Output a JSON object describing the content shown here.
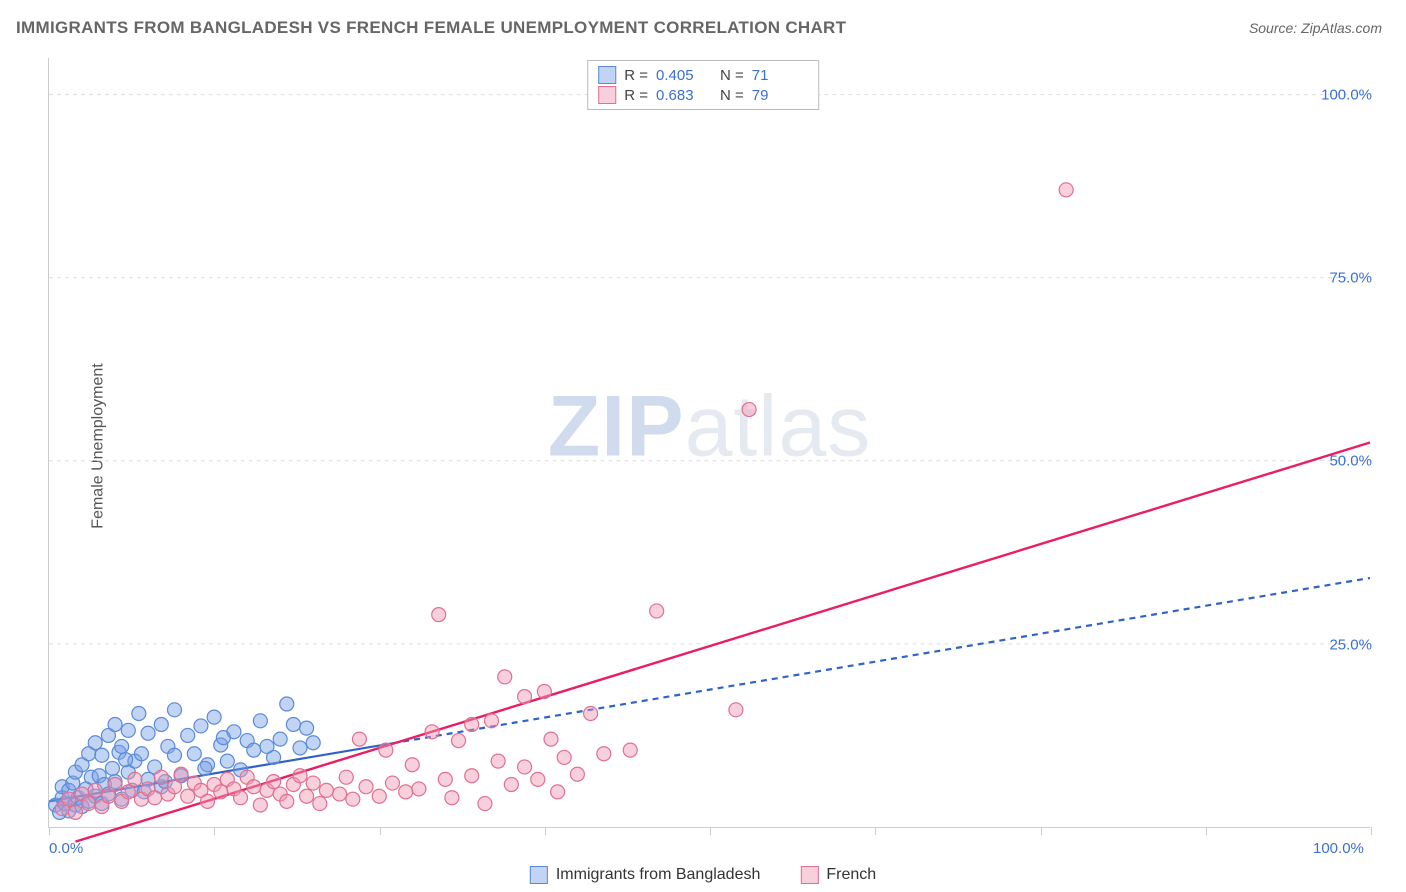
{
  "title": "IMMIGRANTS FROM BANGLADESH VS FRENCH FEMALE UNEMPLOYMENT CORRELATION CHART",
  "source": "Source: ZipAtlas.com",
  "y_axis_title": "Female Unemployment",
  "watermark_bold": "ZIP",
  "watermark_light": "atlas",
  "chart": {
    "type": "scatter-with-regression",
    "xlim": [
      0,
      100
    ],
    "ylim": [
      0,
      105
    ],
    "x_ticks": [
      0,
      12.5,
      25,
      37.5,
      50,
      62.5,
      75,
      87.5,
      100
    ],
    "x_tick_labels_shown": {
      "0": "0.0%",
      "100": "100.0%"
    },
    "y_gridlines": [
      25,
      50,
      75,
      100
    ],
    "y_tick_labels": {
      "25": "25.0%",
      "50": "50.0%",
      "75": "75.0%",
      "100": "100.0%"
    },
    "background_color": "#ffffff",
    "grid_color": "#dddddd",
    "axis_color": "#cccccc",
    "label_color": "#3b6fd6",
    "marker_radius": 7,
    "marker_stroke_width": 1.2,
    "series": [
      {
        "name": "Immigrants from Bangladesh",
        "fill": "rgba(120,160,230,0.45)",
        "stroke": "#5a8ad8",
        "line_color": "#2f63c9",
        "line_dash": "6 5",
        "line_solid_until_x": 26,
        "line_width": 2.2,
        "R": "0.405",
        "N": "71",
        "regression": {
          "x1": 0,
          "y1": 3.5,
          "x2": 100,
          "y2": 34
        },
        "points": [
          [
            0.5,
            3
          ],
          [
            0.8,
            2
          ],
          [
            1,
            4
          ],
          [
            1,
            5.5
          ],
          [
            1.2,
            3.2
          ],
          [
            1.5,
            5
          ],
          [
            1.5,
            2.2
          ],
          [
            1.8,
            6
          ],
          [
            2,
            3
          ],
          [
            2,
            7.5
          ],
          [
            2.2,
            4
          ],
          [
            2.5,
            8.5
          ],
          [
            2.5,
            2.8
          ],
          [
            2.8,
            5.2
          ],
          [
            3,
            10
          ],
          [
            3,
            3.5
          ],
          [
            3.2,
            6.8
          ],
          [
            3.5,
            4.2
          ],
          [
            3.5,
            11.5
          ],
          [
            3.8,
            7
          ],
          [
            4,
            9.8
          ],
          [
            4,
            3.2
          ],
          [
            4.2,
            5.8
          ],
          [
            4.5,
            12.5
          ],
          [
            4.5,
            4.5
          ],
          [
            4.8,
            8
          ],
          [
            5,
            6.2
          ],
          [
            5,
            14
          ],
          [
            5.3,
            10.2
          ],
          [
            5.5,
            3.8
          ],
          [
            5.5,
            11
          ],
          [
            6,
            7.5
          ],
          [
            6,
            13.2
          ],
          [
            6.3,
            5
          ],
          [
            6.5,
            9
          ],
          [
            6.8,
            15.5
          ],
          [
            7,
            10
          ],
          [
            7.5,
            6.5
          ],
          [
            7.5,
            12.8
          ],
          [
            8,
            8.2
          ],
          [
            8.5,
            14
          ],
          [
            8.5,
            5.5
          ],
          [
            9,
            11
          ],
          [
            9.5,
            9.8
          ],
          [
            9.5,
            16
          ],
          [
            10,
            7
          ],
          [
            10.5,
            12.5
          ],
          [
            11,
            10
          ],
          [
            11.5,
            13.8
          ],
          [
            12,
            8.5
          ],
          [
            12.5,
            15
          ],
          [
            13,
            11.2
          ],
          [
            13.5,
            9
          ],
          [
            14,
            13
          ],
          [
            14.5,
            7.8
          ],
          [
            15,
            11.8
          ],
          [
            15.5,
            10.5
          ],
          [
            16,
            14.5
          ],
          [
            17,
            9.5
          ],
          [
            17.5,
            12
          ],
          [
            18,
            16.8
          ],
          [
            19,
            10.8
          ],
          [
            19.5,
            13.5
          ],
          [
            20,
            11.5
          ],
          [
            7.2,
            4.8
          ],
          [
            8.8,
            6.2
          ],
          [
            11.8,
            8
          ],
          [
            13.2,
            12.2
          ],
          [
            16.5,
            11
          ],
          [
            18.5,
            14
          ],
          [
            5.8,
            9.2
          ]
        ]
      },
      {
        "name": "French",
        "fill": "rgba(240,150,180,0.45)",
        "stroke": "#e07090",
        "line_color": "#e91e63",
        "line_dash": "none",
        "line_width": 2.4,
        "R": "0.683",
        "N": "79",
        "regression": {
          "x1": 2,
          "y1": -2,
          "x2": 100,
          "y2": 52.5
        },
        "points": [
          [
            1,
            2.5
          ],
          [
            1.5,
            3.8
          ],
          [
            2,
            2
          ],
          [
            2.5,
            4.5
          ],
          [
            3,
            3.2
          ],
          [
            3.5,
            5
          ],
          [
            4,
            2.8
          ],
          [
            4.5,
            4.2
          ],
          [
            5,
            5.8
          ],
          [
            5.5,
            3.5
          ],
          [
            6,
            4.8
          ],
          [
            6.5,
            6.5
          ],
          [
            7,
            3.8
          ],
          [
            7.5,
            5.2
          ],
          [
            8,
            4
          ],
          [
            8.5,
            6.8
          ],
          [
            9,
            4.5
          ],
          [
            9.5,
            5.5
          ],
          [
            10,
            7.2
          ],
          [
            10.5,
            4.2
          ],
          [
            11,
            6
          ],
          [
            11.5,
            5
          ],
          [
            12,
            3.5
          ],
          [
            12.5,
            5.8
          ],
          [
            13,
            4.8
          ],
          [
            13.5,
            6.5
          ],
          [
            14,
            5.2
          ],
          [
            14.5,
            4
          ],
          [
            15,
            6.8
          ],
          [
            15.5,
            5.5
          ],
          [
            16,
            3
          ],
          [
            16.5,
            5
          ],
          [
            17,
            6.2
          ],
          [
            17.5,
            4.5
          ],
          [
            18,
            3.5
          ],
          [
            18.5,
            5.8
          ],
          [
            19,
            7
          ],
          [
            19.5,
            4.2
          ],
          [
            20,
            6
          ],
          [
            20.5,
            3.2
          ],
          [
            21,
            5
          ],
          [
            22,
            4.5
          ],
          [
            22.5,
            6.8
          ],
          [
            23,
            3.8
          ],
          [
            23.5,
            12
          ],
          [
            24,
            5.5
          ],
          [
            25,
            4.2
          ],
          [
            25.5,
            10.5
          ],
          [
            26,
            6
          ],
          [
            27,
            4.8
          ],
          [
            27.5,
            8.5
          ],
          [
            28,
            5.2
          ],
          [
            29,
            13
          ],
          [
            30,
            6.5
          ],
          [
            30.5,
            4
          ],
          [
            31,
            11.8
          ],
          [
            32,
            7
          ],
          [
            33,
            3.2
          ],
          [
            33.5,
            14.5
          ],
          [
            34,
            9
          ],
          [
            34.5,
            20.5
          ],
          [
            35,
            5.8
          ],
          [
            36,
            8.2
          ],
          [
            37,
            6.5
          ],
          [
            38,
            12
          ],
          [
            38.5,
            4.8
          ],
          [
            39,
            9.5
          ],
          [
            40,
            7.2
          ],
          [
            41,
            15.5
          ],
          [
            42,
            10
          ],
          [
            36,
            17.8
          ],
          [
            37.5,
            18.5
          ],
          [
            29.5,
            29
          ],
          [
            32,
            14
          ],
          [
            44,
            10.5
          ],
          [
            46,
            29.5
          ],
          [
            53,
            57
          ],
          [
            52,
            16
          ],
          [
            77,
            87
          ]
        ]
      }
    ]
  },
  "legend_bottom": [
    {
      "label": "Immigrants from Bangladesh",
      "fill": "rgba(120,160,230,0.45)",
      "stroke": "#5a8ad8"
    },
    {
      "label": "French",
      "fill": "rgba(240,150,180,0.45)",
      "stroke": "#e07090"
    }
  ]
}
